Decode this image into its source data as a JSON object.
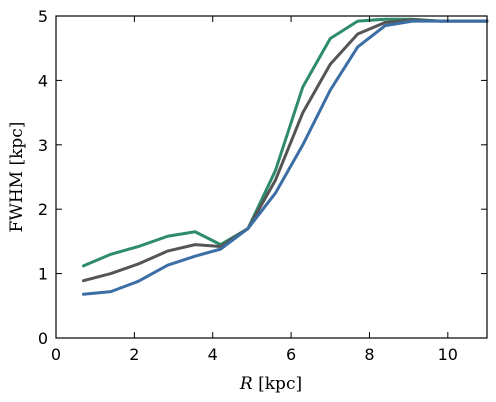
{
  "chart_data": {
    "type": "line",
    "xlabel_var": "R",
    "xlabel_unit": " [kpc]",
    "ylabel": "FWHM [kpc]",
    "xlim": [
      0,
      11
    ],
    "ylim": [
      0,
      5
    ],
    "xticks": [
      0,
      2,
      4,
      6,
      8,
      10
    ],
    "yticks": [
      0,
      1,
      2,
      3,
      4,
      5
    ],
    "grid": false,
    "series": [
      {
        "color": "#2e8b6e",
        "x": [
          0.7,
          1.4,
          2.1,
          2.85,
          3.55,
          4.2,
          4.9,
          5.6,
          6.3,
          7.0,
          7.7,
          8.4,
          9.1,
          9.8,
          10.5,
          11.0
        ],
        "y": [
          1.12,
          1.3,
          1.42,
          1.58,
          1.65,
          1.45,
          1.7,
          2.6,
          3.9,
          4.65,
          4.92,
          4.95,
          4.95,
          4.92,
          4.92,
          4.92
        ]
      },
      {
        "color": "#555555",
        "x": [
          0.7,
          1.4,
          2.1,
          2.85,
          3.55,
          4.2,
          4.9,
          5.6,
          6.3,
          7.0,
          7.7,
          8.4,
          9.1,
          9.8,
          10.5,
          11.0
        ],
        "y": [
          0.89,
          1.0,
          1.15,
          1.35,
          1.45,
          1.42,
          1.7,
          2.45,
          3.5,
          4.25,
          4.72,
          4.9,
          4.94,
          4.92,
          4.92,
          4.92
        ]
      },
      {
        "color": "#3b6ea5",
        "x": [
          0.7,
          1.4,
          2.1,
          2.85,
          3.55,
          4.2,
          4.9,
          5.6,
          6.3,
          7.0,
          7.7,
          8.4,
          9.1,
          9.8,
          10.5,
          11.0
        ],
        "y": [
          0.68,
          0.72,
          0.88,
          1.13,
          1.27,
          1.38,
          1.7,
          2.25,
          3.0,
          3.85,
          4.52,
          4.85,
          4.92,
          4.92,
          4.92,
          4.92
        ]
      }
    ]
  }
}
